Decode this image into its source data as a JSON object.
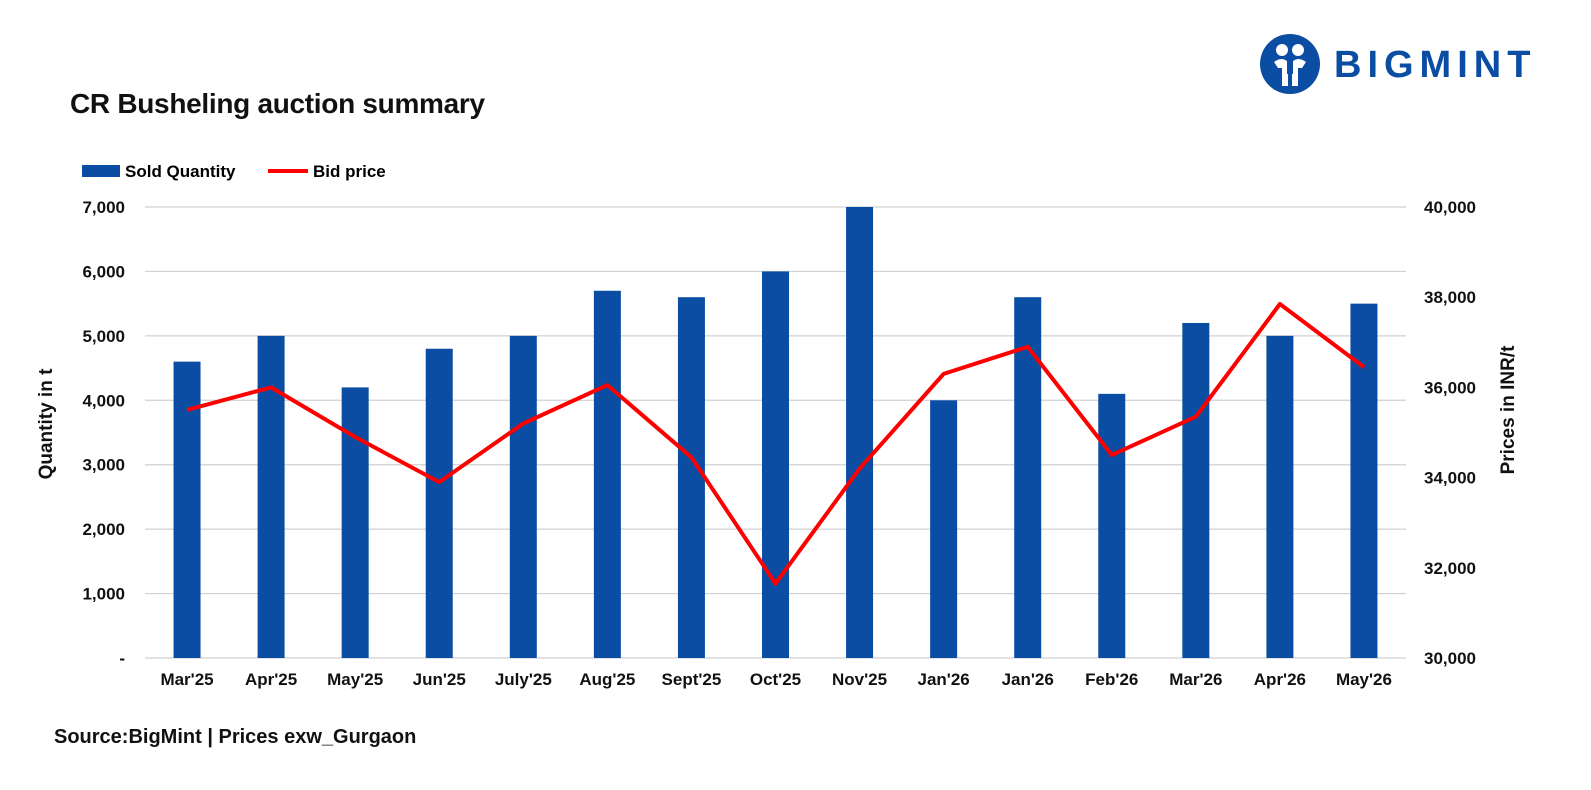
{
  "header": {
    "title": "CR Busheling auction summary",
    "logo_text": "BIGMINT"
  },
  "footer": {
    "source": "Source:BigMint | Prices exw_Gurgaon"
  },
  "colors": {
    "bar": "#0a4da2",
    "line": "#ff0000",
    "grid": "#d0d0d0",
    "brand": "#0a4da2"
  },
  "chart_data": {
    "type": "bar",
    "categories": [
      "Mar'25",
      "Apr'25",
      "May'25",
      "Jun'25",
      "July'25",
      "Aug'25",
      "Sept'25",
      "Oct'25",
      "Nov'25",
      "Jan'26",
      "Jan'26",
      "Feb'26",
      "Mar'26",
      "Apr'26",
      "May'26"
    ],
    "series": [
      {
        "name": "Sold Quantity",
        "type": "bar",
        "axis": "left",
        "values": [
          4600,
          5000,
          4200,
          4800,
          5000,
          5700,
          5600,
          6000,
          7000,
          4000,
          5600,
          4100,
          5200,
          5000,
          5500
        ]
      },
      {
        "name": "Bid price",
        "type": "line",
        "axis": "right",
        "values": [
          35500,
          36000,
          34900,
          33900,
          35200,
          36050,
          34450,
          31650,
          34200,
          36300,
          36900,
          34500,
          35350,
          37850,
          36450
        ]
      }
    ],
    "ylabel": "Quantity in t",
    "y2label": "Prices in INR/t",
    "ylim": [
      0,
      7000
    ],
    "y2lim": [
      30000,
      40000
    ],
    "yticks": [
      "-",
      "1,000",
      "2,000",
      "3,000",
      "4,000",
      "5,000",
      "6,000",
      "7,000"
    ],
    "y2ticks": [
      "30,000",
      "32,000",
      "34,000",
      "36,000",
      "38,000",
      "40,000"
    ],
    "grid": true,
    "legend": "top-left"
  }
}
